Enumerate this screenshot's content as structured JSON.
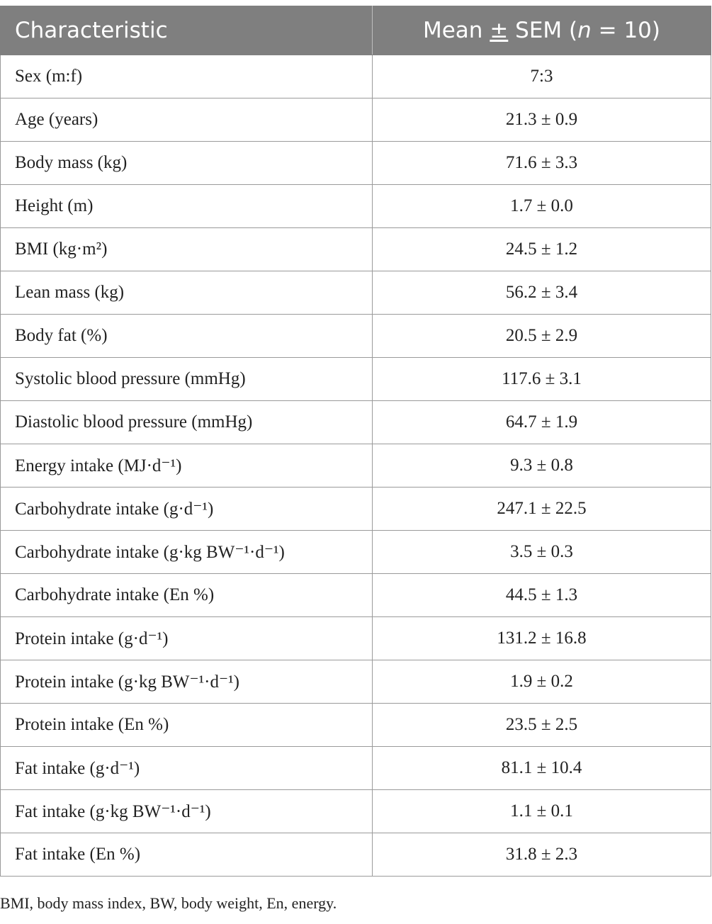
{
  "header": {
    "col1": "Characteristic",
    "col2_prefix": "Mean ",
    "col2_pm": "±",
    "col2_mid": " SEM (",
    "col2_n": "n",
    "col2_suffix": " = 10)"
  },
  "rows": [
    {
      "label": "Sex (m:f)",
      "value": "7:3"
    },
    {
      "label": "Age (years)",
      "value": "21.3 ± 0.9"
    },
    {
      "label": "Body mass (kg)",
      "value": "71.6 ± 3.3"
    },
    {
      "label": "Height (m)",
      "value": "1.7 ± 0.0"
    },
    {
      "label": "BMI (kg·m²)",
      "value": "24.5 ± 1.2"
    },
    {
      "label": "Lean mass (kg)",
      "value": "56.2 ± 3.4"
    },
    {
      "label": "Body fat (%)",
      "value": "20.5 ± 2.9"
    },
    {
      "label": "Systolic blood pressure (mmHg)",
      "value": "117.6 ± 3.1"
    },
    {
      "label": "Diastolic blood pressure (mmHg)",
      "value": "64.7 ± 1.9"
    },
    {
      "label": "Energy intake (MJ·d⁻¹)",
      "value": "9.3 ± 0.8"
    },
    {
      "label": "Carbohydrate intake (g·d⁻¹)",
      "value": "247.1 ± 22.5"
    },
    {
      "label": "Carbohydrate intake (g·kg BW⁻¹·d⁻¹)",
      "value": "3.5 ± 0.3"
    },
    {
      "label": "Carbohydrate intake (En %)",
      "value": "44.5 ± 1.3"
    },
    {
      "label": "Protein intake (g·d⁻¹)",
      "value": "131.2 ± 16.8"
    },
    {
      "label": "Protein intake (g·kg BW⁻¹·d⁻¹)",
      "value": "1.9 ± 0.2"
    },
    {
      "label": "Protein intake (En %)",
      "value": "23.5 ± 2.5"
    },
    {
      "label": "Fat intake (g·d⁻¹)",
      "value": "81.1 ± 10.4"
    },
    {
      "label": "Fat intake (g·kg BW⁻¹·d⁻¹)",
      "value": "1.1 ± 0.1"
    },
    {
      "label": "Fat intake (En %)",
      "value": "31.8 ± 2.3"
    }
  ],
  "footnote": "BMI, body mass index, BW, body weight, En, energy."
}
